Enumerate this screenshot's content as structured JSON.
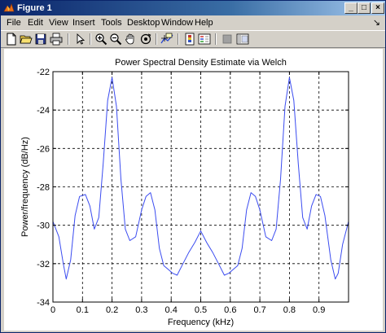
{
  "window": {
    "title": "Figure 1",
    "controls": {
      "minimize": "_",
      "maximize": "□",
      "close": "×"
    }
  },
  "menubar": {
    "items": [
      "File",
      "Edit",
      "View",
      "Insert",
      "Tools",
      "Desktop",
      "Window",
      "Help"
    ],
    "dock_arrow": "↘"
  },
  "toolbar": {
    "icons": [
      "new-file-icon",
      "open-folder-icon",
      "save-icon",
      "print-icon",
      "pointer-icon",
      "zoom-in-icon",
      "zoom-out-icon",
      "pan-hand-icon",
      "rotate-3d-icon",
      "data-cursor-icon",
      "colorbar-icon",
      "legend-icon",
      "hide-plot-tools-icon",
      "show-plot-tools-icon"
    ]
  },
  "chart_data": {
    "type": "line",
    "title": "Power Spectral Density Estimate via Welch",
    "xlabel": "Frequency (kHz)",
    "ylabel": "Power/frequency (dB/Hz)",
    "xlim": [
      0,
      1
    ],
    "ylim": [
      -34,
      -22
    ],
    "grid": true,
    "grid_style": "dashed",
    "xticks": [
      0,
      0.1,
      0.2,
      0.3,
      0.4,
      0.5,
      0.6,
      0.7,
      0.8,
      0.9
    ],
    "xtick_labels": [
      "0",
      "0.1",
      "0.2",
      "0.3",
      "0.4",
      "0.5",
      "0.6",
      "0.7",
      "0.8",
      "0.9"
    ],
    "yticks": [
      -34,
      -32,
      -30,
      -28,
      -26,
      -24,
      -22
    ],
    "ytick_labels": [
      "-34",
      "-32",
      "-30",
      "-28",
      "-26",
      "-24",
      "-22"
    ],
    "line_color": "#3b4cf0",
    "series": [
      {
        "x": [
          0,
          0.02,
          0.035,
          0.045,
          0.06,
          0.075,
          0.09,
          0.11,
          0.125,
          0.14,
          0.155,
          0.17,
          0.185,
          0.2,
          0.215,
          0.23,
          0.245,
          0.26,
          0.28,
          0.3,
          0.315,
          0.33,
          0.345,
          0.36,
          0.375,
          0.39,
          0.405,
          0.42,
          0.44,
          0.46,
          0.48,
          0.5,
          0.52,
          0.54,
          0.56,
          0.58,
          0.595,
          0.61,
          0.625,
          0.64,
          0.655,
          0.67,
          0.685,
          0.7,
          0.72,
          0.74,
          0.755,
          0.77,
          0.785,
          0.8,
          0.815,
          0.83,
          0.845,
          0.86,
          0.875,
          0.89,
          0.905,
          0.92,
          0.94,
          0.955,
          0.965,
          0.98,
          1.0
        ],
        "y": [
          -29.8,
          -30.6,
          -32.0,
          -32.8,
          -31.8,
          -29.5,
          -28.5,
          -28.4,
          -29.0,
          -30.2,
          -29.6,
          -26.8,
          -23.5,
          -22.3,
          -23.8,
          -27.6,
          -30.2,
          -30.8,
          -30.6,
          -29.2,
          -28.5,
          -28.3,
          -29.2,
          -31.2,
          -32.1,
          -32.3,
          -32.5,
          -32.6,
          -32.0,
          -31.4,
          -30.9,
          -30.3,
          -30.9,
          -31.4,
          -32.0,
          -32.6,
          -32.5,
          -32.3,
          -32.1,
          -31.2,
          -29.2,
          -28.3,
          -28.5,
          -29.2,
          -30.6,
          -30.8,
          -30.2,
          -27.6,
          -23.8,
          -22.3,
          -23.5,
          -26.8,
          -29.6,
          -30.2,
          -29.0,
          -28.4,
          -28.5,
          -29.5,
          -31.8,
          -32.8,
          -32.5,
          -31.0,
          -29.8
        ]
      }
    ]
  }
}
